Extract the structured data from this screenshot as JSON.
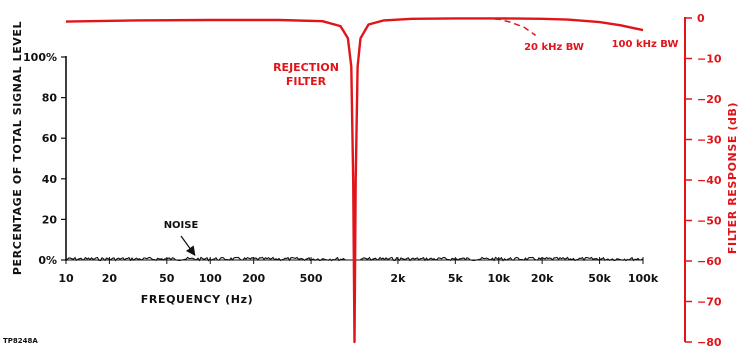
{
  "chart_data": {
    "type": "line",
    "figure_id": "TP8248A",
    "x_axis": {
      "label": "FREQUENCY (Hz)",
      "scale": "log",
      "range": [
        10,
        100000
      ],
      "ticks": [
        {
          "value": 10,
          "label": "10"
        },
        {
          "value": 20,
          "label": "20"
        },
        {
          "value": 50,
          "label": "50"
        },
        {
          "value": 100,
          "label": "100"
        },
        {
          "value": 200,
          "label": "200"
        },
        {
          "value": 500,
          "label": "500"
        },
        {
          "value": 2000,
          "label": "2k"
        },
        {
          "value": 5000,
          "label": "5k"
        },
        {
          "value": 10000,
          "label": "10k"
        },
        {
          "value": 20000,
          "label": "20k"
        },
        {
          "value": 50000,
          "label": "50k"
        },
        {
          "value": 100000,
          "label": "100k"
        }
      ]
    },
    "y_axis_left": {
      "label": "PERCENTAGE OF TOTAL SIGNAL LEVEL",
      "range": [
        0,
        100
      ],
      "ticks": [
        {
          "value": 0,
          "label": "0%"
        },
        {
          "value": 20,
          "label": "20"
        },
        {
          "value": 40,
          "label": "40"
        },
        {
          "value": 60,
          "label": "60"
        },
        {
          "value": 80,
          "label": "80"
        },
        {
          "value": 100,
          "label": "100%"
        }
      ]
    },
    "y_axis_right": {
      "label": "FILTER RESPONSE (dB)",
      "range": [
        -80,
        0
      ],
      "color": "#e0151b",
      "ticks": [
        {
          "value": 0,
          "label": "0"
        },
        {
          "value": -10,
          "label": "-10"
        },
        {
          "value": -20,
          "label": "-20"
        },
        {
          "value": -30,
          "label": "-30"
        },
        {
          "value": -40,
          "label": "-40"
        },
        {
          "value": -50,
          "label": "-50"
        },
        {
          "value": -60,
          "label": "-60"
        },
        {
          "value": -70,
          "label": "-70"
        },
        {
          "value": -80,
          "label": "-80"
        }
      ]
    },
    "series": [
      {
        "color": "#e0151b",
        "axis": "right",
        "style": "solid",
        "x": [
          10,
          30,
          100,
          300,
          600,
          800,
          900,
          950,
          980,
          1000,
          1020,
          1050,
          1100,
          1250,
          1600,
          2500,
          5000,
          10000,
          20000,
          30000,
          50000,
          70000,
          100000
        ],
        "y": [
          -0.9,
          -0.6,
          -0.5,
          -0.5,
          -0.8,
          -2,
          -5,
          -12,
          -40,
          -80,
          -40,
          -12,
          -5,
          -1.6,
          -0.6,
          -0.2,
          -0.1,
          -0.1,
          -0.2,
          -0.4,
          -1.0,
          -1.8,
          -3.0
        ]
      },
      {
        "color": "#e0151b",
        "axis": "right",
        "style": "dashed",
        "x": [
          8000,
          10000,
          12000,
          15000,
          18000
        ],
        "y": [
          -0.1,
          -0.3,
          -1.0,
          -2.3,
          -4.3
        ]
      },
      {
        "color": "#111111",
        "axis": "left",
        "style": "noise",
        "x_ranges": [
          [
            10,
            900
          ],
          [
            1100,
            100000
          ]
        ],
        "level": 0.5
      }
    ],
    "annotations": [
      {
        "text": "REJECTION",
        "color": "#e0151b"
      },
      {
        "text": "FILTER",
        "color": "#e0151b"
      },
      {
        "text": "20 kHz BW",
        "color": "#e0151b"
      },
      {
        "text": "100 kHz BW",
        "color": "#e0151b"
      },
      {
        "text": "NOISE",
        "color": "#111111"
      }
    ]
  }
}
